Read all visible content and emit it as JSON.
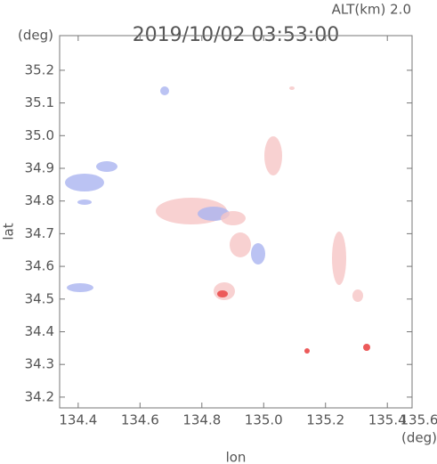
{
  "chart_data": {
    "type": "map",
    "title": "2019/10/02 03:53:00",
    "altitude_label": "ALT(km) 2.0",
    "y_unit": "(deg)",
    "x_unit": "(deg)",
    "xlabel": "lon",
    "ylabel": "lat",
    "xlim": [
      134.34,
      135.48
    ],
    "ylim": [
      34.167,
      35.306
    ],
    "xticks": [
      134.4,
      134.6,
      134.8,
      {
        "value": 135,
        "label": "135.0"
      },
      135.2,
      135.4,
      135.6
    ],
    "yticks": [
      34.2,
      34.3,
      34.4,
      34.5,
      34.6,
      34.7,
      34.8,
      34.9,
      {
        "value": 35,
        "label": "35.0"
      },
      35.1,
      35.2
    ]
  }
}
